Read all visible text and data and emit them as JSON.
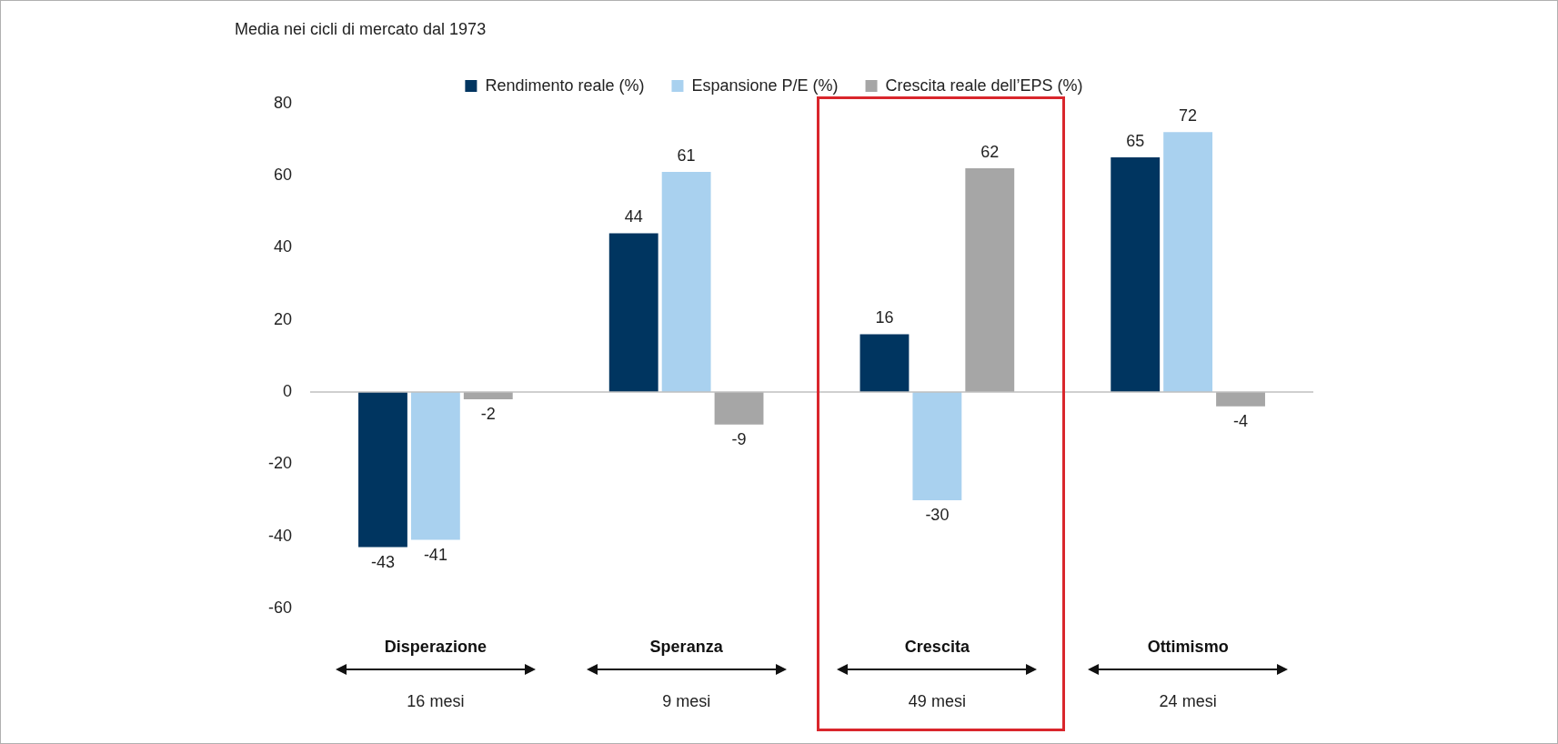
{
  "chart_data": {
    "type": "bar",
    "title": "Media nei cicli di mercato dal 1973",
    "categories": [
      "Disperazione",
      "Speranza",
      "Crescita",
      "Ottimismo"
    ],
    "series": [
      {
        "name": "Rendimento reale (%)",
        "color": "#003560",
        "values": [
          -43,
          44,
          16,
          65
        ]
      },
      {
        "name": "Espansione P/E (%)",
        "color": "#a9d1ef",
        "values": [
          -41,
          61,
          -30,
          72
        ]
      },
      {
        "name": "Crescita reale dell’EPS (%)",
        "color": "#a6a6a6",
        "values": [
          -2,
          -9,
          62,
          -4
        ]
      }
    ],
    "ylim": [
      -60,
      80
    ],
    "yticks": [
      -60,
      -40,
      -20,
      0,
      20,
      40,
      60,
      80
    ],
    "ref_lines": [
      {
        "axis": "y",
        "value": 0,
        "color": "#bfbfbf"
      }
    ],
    "legend": "top",
    "data_labels": true,
    "annotations": [
      "16 mesi",
      "9 mesi",
      "49 mesi",
      "24 mesi"
    ]
  }
}
